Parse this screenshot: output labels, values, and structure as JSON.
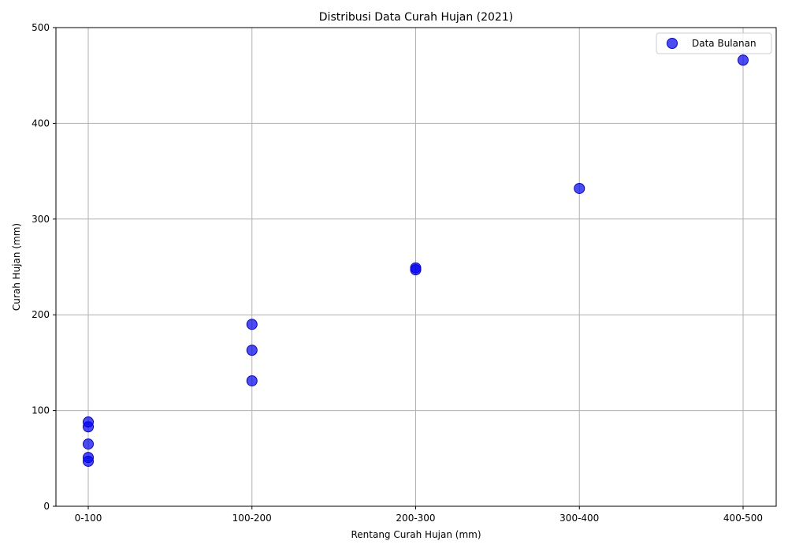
{
  "chart_data": {
    "type": "scatter",
    "title": "Distribusi Data Curah Hujan (2021)",
    "xlabel": "Rentang Curah Hujan (mm)",
    "ylabel": "Curah Hujan (mm)",
    "categories": [
      "0-100",
      "100-200",
      "200-300",
      "300-400",
      "400-500"
    ],
    "ylim": [
      0,
      500
    ],
    "yticks": [
      0,
      100,
      200,
      300,
      400,
      500
    ],
    "grid": true,
    "legend_position": "top-right",
    "series": [
      {
        "name": "Data Bulanan",
        "color": "#0000ee",
        "points": [
          {
            "x": "0-100",
            "y": 88
          },
          {
            "x": "0-100",
            "y": 83
          },
          {
            "x": "0-100",
            "y": 65
          },
          {
            "x": "0-100",
            "y": 51
          },
          {
            "x": "0-100",
            "y": 47
          },
          {
            "x": "100-200",
            "y": 190
          },
          {
            "x": "100-200",
            "y": 163
          },
          {
            "x": "100-200",
            "y": 131
          },
          {
            "x": "200-300",
            "y": 249
          },
          {
            "x": "200-300",
            "y": 247
          },
          {
            "x": "300-400",
            "y": 332
          },
          {
            "x": "400-500",
            "y": 466
          }
        ]
      }
    ]
  }
}
